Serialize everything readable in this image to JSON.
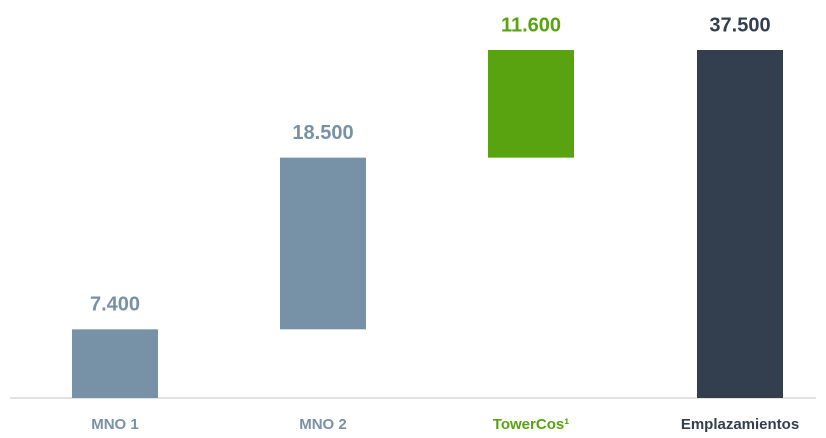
{
  "chart_data": {
    "type": "waterfall",
    "categories": [
      "MNO 1",
      "MNO 2",
      "TowerCos¹",
      "Emplazamientos"
    ],
    "values": [
      7400,
      18500,
      11600,
      37500
    ],
    "value_labels": [
      "7.400",
      "18.500",
      "11.600",
      "37.500"
    ],
    "measure": [
      "relative",
      "relative",
      "relative",
      "total"
    ],
    "colors": [
      "#7791a6",
      "#7791a6",
      "#58a30f",
      "#333f4f"
    ],
    "ylim": [
      0,
      37500
    ]
  }
}
